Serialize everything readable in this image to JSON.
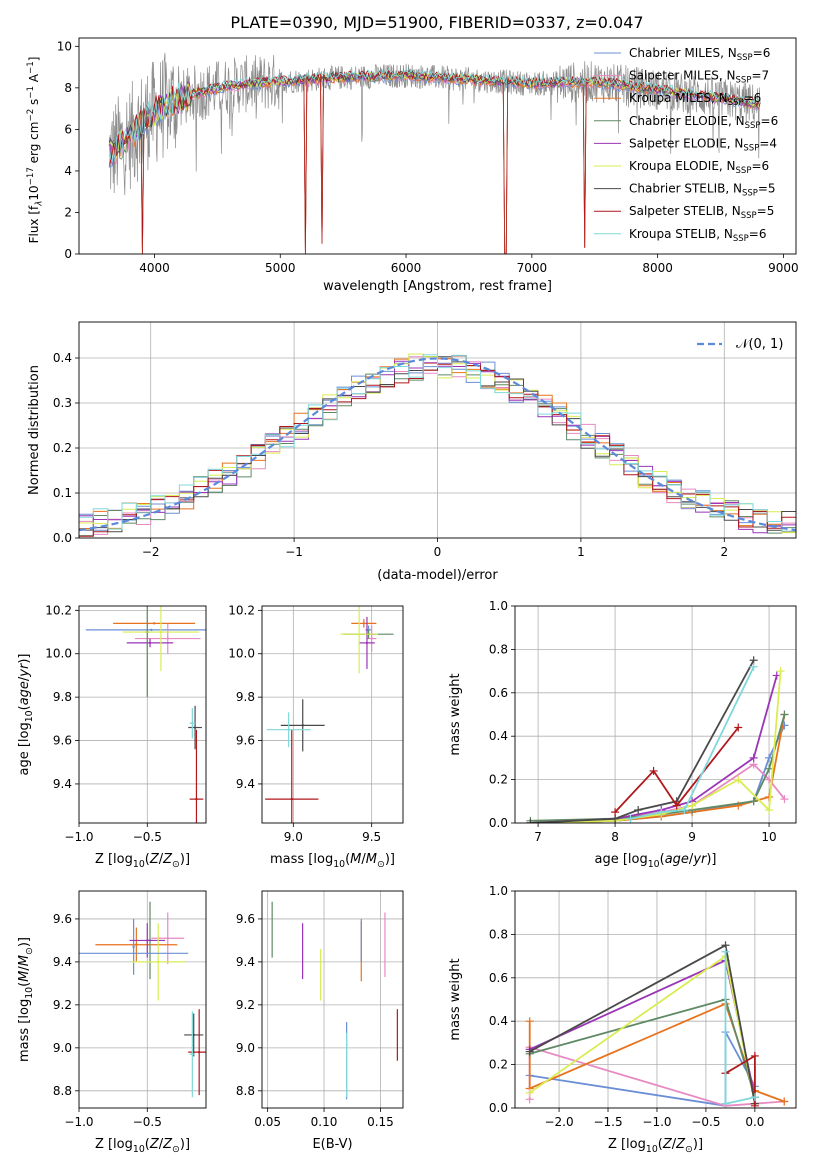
{
  "title": "PLATE=0390, MJD=51900, FIBERID=0337, z=0.047",
  "colors": {
    "Chabrier MILES": "#6b8fd6",
    "Salpeter MILES": "#e78ac3",
    "Kroupa MILES": "#e8731e",
    "Chabrier ELODIE": "#5f8a64",
    "Salpeter ELODIE": "#9b35b8",
    "Kroupa ELODIE": "#d9ec52",
    "Chabrier STELIB": "#4a4a4a",
    "Salpeter STELIB": "#b0181c",
    "Kroupa STELIB": "#7fd8dc",
    "data": "#8c8c8c",
    "normal": "#5b8adc"
  },
  "chart_data": [
    {
      "type": "line",
      "panel": "spectrum",
      "xlabel": "wavelength [Angstrom, rest frame]",
      "ylabel": "Flux [f",
      "ylabel_parts": [
        "Flux [f",
        "λ",
        "10",
        "−17",
        " erg cm",
        "−2",
        " s",
        "−1",
        " A",
        "−1",
        "]"
      ],
      "xlim": [
        3400,
        9100
      ],
      "ylim": [
        0,
        10.4
      ],
      "xticks": [
        "4000",
        "5000",
        "6000",
        "7000",
        "8000",
        "9000"
      ],
      "yticks": [
        "0",
        "2",
        "4",
        "6",
        "8",
        "10"
      ],
      "legend": [
        {
          "name": "Chabrier MILES",
          "nssp": "6"
        },
        {
          "name": "Salpeter MILES",
          "nssp": "7"
        },
        {
          "name": "Kroupa MILES",
          "nssp": "6"
        },
        {
          "name": "Chabrier ELODIE",
          "nssp": "6"
        },
        {
          "name": "Salpeter ELODIE",
          "nssp": "4"
        },
        {
          "name": "Kroupa ELODIE",
          "nssp": "6"
        },
        {
          "name": "Chabrier STELIB",
          "nssp": "5"
        },
        {
          "name": "Salpeter STELIB",
          "nssp": "5"
        },
        {
          "name": "Kroupa STELIB",
          "nssp": "6"
        }
      ],
      "legend_nssp_prefix": "N",
      "legend_nssp_sub": "SSP",
      "legend_placement": "right",
      "continuum": [
        [
          3650,
          4.8
        ],
        [
          3800,
          5.6
        ],
        [
          3950,
          6.6
        ],
        [
          4100,
          7.2
        ],
        [
          4300,
          7.7
        ],
        [
          4600,
          8.1
        ],
        [
          5000,
          8.3
        ],
        [
          5500,
          8.5
        ],
        [
          6000,
          8.6
        ],
        [
          6500,
          8.4
        ],
        [
          7000,
          8.2
        ],
        [
          7500,
          8.3
        ],
        [
          8000,
          7.9
        ],
        [
          8500,
          7.5
        ],
        [
          8800,
          7.2
        ]
      ],
      "dips": [
        [
          3900,
          0.0
        ],
        [
          5200,
          0.0
        ],
        [
          6790,
          0.0
        ],
        [
          5330,
          0.5
        ],
        [
          7420,
          0.3
        ]
      ]
    },
    {
      "type": "bar",
      "panel": "residuals",
      "xlabel": "(data-model)/error",
      "ylabel": "Normed distribution",
      "xlim": [
        -2.5,
        2.5
      ],
      "ylim": [
        0,
        0.48
      ],
      "xticks": [
        "−2",
        "−1",
        "0",
        "1",
        "2"
      ],
      "yticks": [
        "0.0",
        "0.1",
        "0.2",
        "0.3",
        "0.4"
      ],
      "grid": true,
      "legend_label": "𝒩(0, 1)",
      "bin_width": 0.1
    },
    {
      "type": "scatter",
      "panel": "Z-age",
      "xlabel": "Z [log10(Z/Z⊙)]",
      "ylabel": "age  [log10(age/yr)]",
      "xlim": [
        -1.0,
        -0.07
      ],
      "ylim": [
        9.22,
        10.22
      ],
      "xticks": [
        "−1.0",
        "−0.5"
      ],
      "yticks": [
        "9.4",
        "9.6",
        "9.8",
        "10.0",
        "10.2"
      ],
      "points": [
        {
          "series": "Chabrier MILES",
          "x": -0.47,
          "y": 10.11,
          "xerr": 0.48,
          "yerr": 0.0
        },
        {
          "series": "Salpeter MILES",
          "x": -0.35,
          "y": 10.07,
          "xerr": 0.24,
          "yerr": 0.07
        },
        {
          "series": "Kroupa MILES",
          "x": -0.45,
          "y": 10.14,
          "xerr": 0.3,
          "yerr": 0.0
        },
        {
          "series": "Chabrier ELODIE",
          "x": -0.5,
          "y": 10.1,
          "xerr": 0.02,
          "yerr": 0.3
        },
        {
          "series": "Salpeter ELODIE",
          "x": -0.48,
          "y": 10.05,
          "xerr": 0.17,
          "yerr": 0.02
        },
        {
          "series": "Kroupa ELODIE",
          "x": -0.4,
          "y": 10.1,
          "xerr": 0.28,
          "yerr": 0.18
        },
        {
          "series": "Chabrier STELIB",
          "x": -0.15,
          "y": 9.66,
          "xerr": 0.05,
          "yerr": 0.1
        },
        {
          "series": "Salpeter STELIB",
          "x": -0.14,
          "y": 9.33,
          "xerr": 0.05,
          "yerr": 0.32
        },
        {
          "series": "Kroupa STELIB",
          "x": -0.17,
          "y": 9.68,
          "xerr": 0.02,
          "yerr": 0.07
        }
      ]
    },
    {
      "type": "scatter",
      "panel": "mass-age",
      "xlabel": "mass [log10(M/M⊙)]",
      "ylabel": "",
      "xlim": [
        8.8,
        9.7
      ],
      "ylim": [
        9.22,
        10.22
      ],
      "xticks": [
        "9.0",
        "9.5"
      ],
      "yticks": [
        "9.4",
        "9.6",
        "9.8",
        "10.0",
        "10.2"
      ],
      "points": [
        {
          "series": "Chabrier MILES",
          "x": 9.48,
          "y": 10.11,
          "xerr": 0.02,
          "yerr": 0.02
        },
        {
          "series": "Salpeter MILES",
          "x": 9.5,
          "y": 10.07,
          "xerr": 0.03,
          "yerr": 0.06
        },
        {
          "series": "Kroupa MILES",
          "x": 9.45,
          "y": 10.14,
          "xerr": 0.08,
          "yerr": 0.02
        },
        {
          "series": "Chabrier ELODIE",
          "x": 9.48,
          "y": 10.09,
          "xerr": 0.16,
          "yerr": 0.02
        },
        {
          "series": "Salpeter ELODIE",
          "x": 9.47,
          "y": 10.05,
          "xerr": 0.05,
          "yerr": 0.12
        },
        {
          "series": "Kroupa ELODIE",
          "x": 9.42,
          "y": 10.09,
          "xerr": 0.12,
          "yerr": 0.18
        },
        {
          "series": "Chabrier STELIB",
          "x": 9.06,
          "y": 9.67,
          "xerr": 0.14,
          "yerr": 0.12
        },
        {
          "series": "Salpeter STELIB",
          "x": 8.99,
          "y": 9.33,
          "xerr": 0.17,
          "yerr": 0.32
        },
        {
          "series": "Kroupa STELIB",
          "x": 8.97,
          "y": 9.65,
          "xerr": 0.14,
          "yerr": 0.08
        }
      ]
    },
    {
      "type": "line",
      "panel": "age-massweight",
      "xlabel": "age  [log10(age/yr)]",
      "ylabel": "mass weight",
      "xlim": [
        6.7,
        10.35
      ],
      "ylim": [
        0,
        1.0
      ],
      "xticks": [
        "7",
        "8",
        "9",
        "10"
      ],
      "yticks": [
        "0.0",
        "0.2",
        "0.4",
        "0.6",
        "0.8",
        "1.0"
      ],
      "grid": true,
      "series": [
        {
          "name": "Chabrier MILES",
          "x": [
            6.9,
            8.0,
            8.6,
            9.0,
            9.8,
            10.0,
            10.2
          ],
          "y": [
            0.0,
            0.01,
            0.03,
            0.05,
            0.1,
            0.3,
            0.45
          ]
        },
        {
          "name": "Salpeter MILES",
          "x": [
            6.9,
            8.0,
            8.6,
            9.0,
            9.8,
            10.0,
            10.2
          ],
          "y": [
            0.0,
            0.02,
            0.05,
            0.08,
            0.27,
            0.2,
            0.11
          ]
        },
        {
          "name": "Kroupa MILES",
          "x": [
            6.9,
            8.0,
            8.6,
            9.0,
            9.6,
            10.0,
            10.2
          ],
          "y": [
            0.0,
            0.01,
            0.03,
            0.05,
            0.08,
            0.12,
            0.5
          ]
        },
        {
          "name": "Chabrier ELODIE",
          "x": [
            6.9,
            8.0,
            8.6,
            9.0,
            9.8,
            10.0,
            10.2
          ],
          "y": [
            0.01,
            0.02,
            0.04,
            0.06,
            0.1,
            0.25,
            0.5
          ]
        },
        {
          "name": "Salpeter ELODIE",
          "x": [
            6.9,
            8.0,
            8.6,
            9.0,
            9.8,
            10.1
          ],
          "y": [
            0.0,
            0.02,
            0.06,
            0.1,
            0.3,
            0.68
          ]
        },
        {
          "name": "Kroupa ELODIE",
          "x": [
            6.9,
            8.0,
            8.6,
            9.0,
            9.6,
            10.0,
            10.15
          ],
          "y": [
            0.0,
            0.01,
            0.04,
            0.08,
            0.2,
            0.06,
            0.7
          ]
        },
        {
          "name": "Chabrier STELIB",
          "x": [
            6.9,
            8.0,
            8.3,
            8.8,
            9.8
          ],
          "y": [
            0.0,
            0.02,
            0.06,
            0.1,
            0.75
          ]
        },
        {
          "name": "Salpeter STELIB",
          "x": [
            8.0,
            8.5,
            8.8,
            9.6
          ],
          "y": [
            0.05,
            0.24,
            0.08,
            0.44
          ]
        },
        {
          "name": "Kroupa STELIB",
          "x": [
            8.2,
            8.6,
            8.9,
            9.8
          ],
          "y": [
            0.02,
            0.05,
            0.06,
            0.72
          ]
        }
      ]
    },
    {
      "type": "scatter",
      "panel": "Z-mass",
      "xlabel": "Z [log10(Z/Z⊙)]",
      "ylabel": "mass [log10(M/M⊙)]",
      "xlim": [
        -1.0,
        -0.07
      ],
      "ylim": [
        8.72,
        9.73
      ],
      "xticks": [
        "−1.0",
        "−0.5"
      ],
      "yticks": [
        "8.8",
        "9.0",
        "9.2",
        "9.4",
        "9.6"
      ],
      "points": [
        {
          "series": "Chabrier MILES",
          "x": -0.6,
          "y": 9.47,
          "xerr": 0.0,
          "yerr": 0.13
        },
        {
          "series": "Salpeter MILES",
          "x": -0.35,
          "y": 9.51,
          "xerr": 0.12,
          "yerr": 0.12
        },
        {
          "series": "Kroupa MILES",
          "x": -0.58,
          "y": 9.48,
          "xerr": 0.3,
          "yerr": 0.08
        },
        {
          "series": "Chabrier ELODIE",
          "x": -0.48,
          "y": 9.5,
          "xerr": 0.02,
          "yerr": 0.18
        },
        {
          "series": "Salpeter ELODIE",
          "x": -0.5,
          "y": 9.5,
          "xerr": 0.13,
          "yerr": 0.08
        },
        {
          "series": "Kroupa ELODIE",
          "x": -0.42,
          "y": 9.4,
          "xerr": 0.2,
          "yerr": 0.18
        },
        {
          "series": "Chabrier STELIB",
          "x": -0.16,
          "y": 9.06,
          "xerr": 0.07,
          "yerr": 0.1
        },
        {
          "series": "Salpeter STELIB",
          "x": -0.12,
          "y": 8.98,
          "xerr": 0.08,
          "yerr": 0.2
        },
        {
          "series": "Kroupa STELIB",
          "x": -0.17,
          "y": 8.97,
          "xerr": 0.02,
          "yerr": 0.2
        }
      ],
      "wide_bar": {
        "x": -0.6,
        "y": 9.44,
        "xerr": 0.4,
        "series": "Chabrier MILES"
      }
    },
    {
      "type": "scatter",
      "panel": "EBV-mass",
      "xlabel": "E(B-V)",
      "ylabel": "",
      "xlim": [
        0.045,
        0.17
      ],
      "ylim": [
        8.72,
        9.73
      ],
      "xticks": [
        "0.05",
        "0.10",
        "0.15"
      ],
      "yticks": [
        "8.8",
        "9.0",
        "9.2",
        "9.4",
        "9.6"
      ],
      "points": [
        {
          "series": "Chabrier ELODIE",
          "x": 0.054,
          "y": 9.55,
          "yerr": 0.13
        },
        {
          "series": "Salpeter ELODIE",
          "x": 0.081,
          "y": 9.45,
          "yerr": 0.13
        },
        {
          "series": "Kroupa ELODIE",
          "x": 0.097,
          "y": 9.34,
          "yerr": 0.12
        },
        {
          "series": "Chabrier MILES",
          "x": 0.12,
          "y": 8.94,
          "yerr": 0.18
        },
        {
          "series": "Kroupa STELIB",
          "x": 0.12,
          "y": 8.92,
          "yerr": 0.15
        },
        {
          "series": "Kroupa MILES",
          "x": 0.133,
          "y": 9.45,
          "yerr": 0.14
        },
        {
          "series": "Chabrier MILES",
          "x": 0.133,
          "y": 9.5,
          "yerr": 0.1
        },
        {
          "series": "Salpeter MILES",
          "x": 0.154,
          "y": 9.48,
          "yerr": 0.15
        },
        {
          "series": "Salpeter STELIB",
          "x": 0.165,
          "y": 9.06,
          "yerr": 0.12
        }
      ]
    },
    {
      "type": "line",
      "panel": "Z-massweight",
      "xlabel": "Z [log10(Z/Z⊙)]",
      "ylabel": "mass weight",
      "xlim": [
        -2.45,
        0.42
      ],
      "ylim": [
        0,
        1.0
      ],
      "xticks": [
        "−2.0",
        "−1.5",
        "−1.0",
        "−0.5",
        "0.0"
      ],
      "yticks": [
        "0.0",
        "0.2",
        "0.4",
        "0.6",
        "0.8",
        "1.0"
      ],
      "grid": true,
      "series": [
        {
          "name": "Chabrier MILES",
          "x": [
            -2.3,
            -0.3,
            -0.3,
            0.0
          ],
          "y": [
            0.15,
            0.01,
            0.35,
            0.1
          ]
        },
        {
          "name": "Salpeter MILES",
          "x": [
            -2.3,
            -2.3,
            -0.3,
            0.3
          ],
          "y": [
            0.04,
            0.28,
            0.01,
            0.03
          ]
        },
        {
          "name": "Kroupa MILES",
          "x": [
            -2.3,
            -2.3,
            -0.3,
            0.0,
            0.3
          ],
          "y": [
            0.4,
            0.09,
            0.48,
            0.08,
            0.03
          ]
        },
        {
          "name": "Chabrier ELODIE",
          "x": [
            -2.3,
            -0.3,
            0.0
          ],
          "y": [
            0.25,
            0.5,
            0.05
          ]
        },
        {
          "name": "Salpeter ELODIE",
          "x": [
            -2.3,
            -0.3,
            0.0
          ],
          "y": [
            0.27,
            0.68,
            0.05
          ]
        },
        {
          "name": "Kroupa ELODIE",
          "x": [
            -2.3,
            -0.3,
            0.0
          ],
          "y": [
            0.07,
            0.7,
            0.02
          ]
        },
        {
          "name": "Chabrier STELIB",
          "x": [
            -2.3,
            -0.3,
            0.0
          ],
          "y": [
            0.26,
            0.75,
            0.02
          ]
        },
        {
          "name": "Salpeter STELIB",
          "x": [
            -0.3,
            0.0,
            0.0
          ],
          "y": [
            0.16,
            0.24,
            0.01
          ]
        },
        {
          "name": "Kroupa STELIB",
          "x": [
            -0.3,
            -0.3,
            0.0
          ],
          "y": [
            0.72,
            0.02,
            0.05
          ]
        }
      ]
    }
  ]
}
